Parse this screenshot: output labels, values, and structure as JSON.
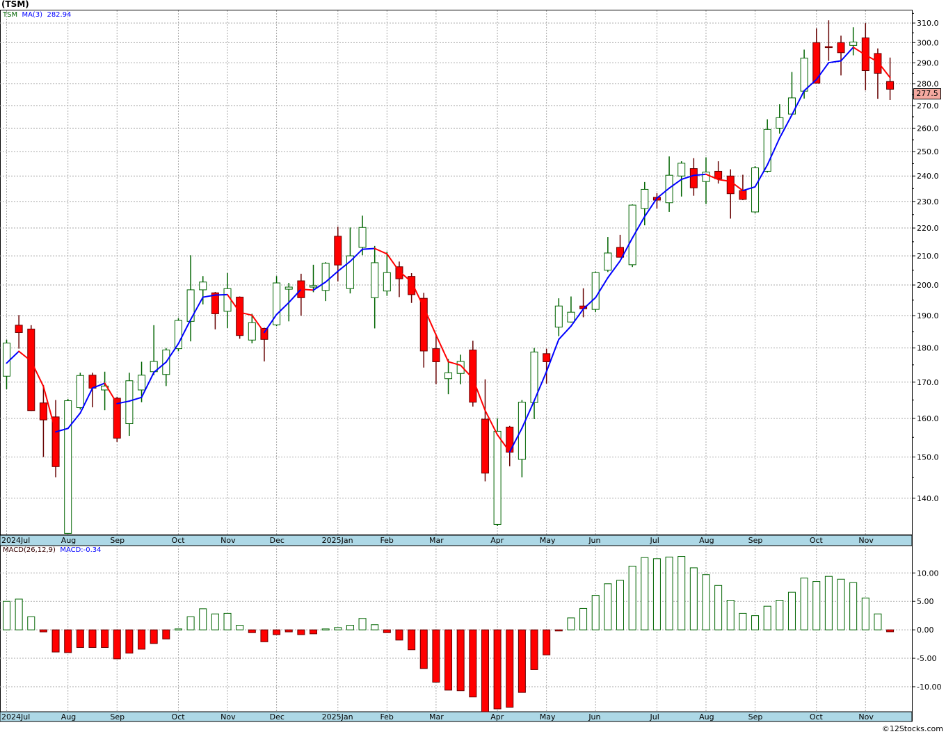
{
  "title": "(TSM)",
  "legend": {
    "symbol": "TSM",
    "ma_label": "MA(3)",
    "ma_value": "282.94"
  },
  "macd_legend": {
    "label": "MACD(26,12,9)",
    "value": "MACD:-0.34"
  },
  "last_price": "277.5",
  "footer": "©12Stocks.com",
  "colors": {
    "up": "#006400",
    "down_fill": "#ff0000",
    "down_edge": "#660000",
    "ma_up": "#0000ff",
    "ma_down": "#ff0000",
    "axis_band": "#add8e6",
    "grid": "#aaaaaa"
  },
  "chart_data": [
    {
      "type": "candlestick",
      "title": "(TSM)",
      "period": "weekly",
      "yscale": "log",
      "ylim": [
        131.6,
        316.6
      ],
      "ytick_labels": [
        "140.0",
        "150.0",
        "160.0",
        "170.0",
        "180.0",
        "190.0",
        "200.0",
        "210.0",
        "220.0",
        "230.0",
        "240.0",
        "250.0",
        "260.0",
        "270.0",
        "280.0",
        "290.0",
        "300.0",
        "310.0"
      ],
      "ytick_values": [
        140,
        150,
        160,
        170,
        180,
        190,
        200,
        210,
        220,
        230,
        240,
        250,
        260,
        270,
        280,
        290,
        300,
        310
      ],
      "months": [
        {
          "label": "2024Jul",
          "index": 0
        },
        {
          "label": "Aug",
          "index": 5
        },
        {
          "label": "Sep",
          "index": 9
        },
        {
          "label": "Oct",
          "index": 14
        },
        {
          "label": "Nov",
          "index": 18
        },
        {
          "label": "Dec",
          "index": 22
        },
        {
          "label": "2025Jan",
          "index": 27
        },
        {
          "label": "Feb",
          "index": 31
        },
        {
          "label": "Mar",
          "index": 35
        },
        {
          "label": "Apr",
          "index": 40
        },
        {
          "label": "May",
          "index": 44
        },
        {
          "label": "Jun",
          "index": 48
        },
        {
          "label": "Jul",
          "index": 53
        },
        {
          "label": "Aug",
          "index": 57
        },
        {
          "label": "Sep",
          "index": 61
        },
        {
          "label": "Oct",
          "index": 66
        },
        {
          "label": "Nov",
          "index": 70
        }
      ],
      "ohlc": [
        [
          171.7,
          182.5,
          168.0,
          181.5
        ],
        [
          187.0,
          190.2,
          179.8,
          184.7
        ],
        [
          185.8,
          187.0,
          162.0,
          162.1
        ],
        [
          164.2,
          169.2,
          150.0,
          159.6
        ],
        [
          160.4,
          165.0,
          145.0,
          147.6
        ],
        [
          132.0,
          165.3,
          132.0,
          164.8
        ],
        [
          162.9,
          172.7,
          162.4,
          171.9
        ],
        [
          172.0,
          172.7,
          163.0,
          168.3
        ],
        [
          167.8,
          173.0,
          162.2,
          168.9
        ],
        [
          165.5,
          165.9,
          153.8,
          154.8
        ],
        [
          158.6,
          172.7,
          155.4,
          170.4
        ],
        [
          167.8,
          175.9,
          164.4,
          172.0
        ],
        [
          173.0,
          187.0,
          172.0,
          176.0
        ],
        [
          172.2,
          180.0,
          168.9,
          179.4
        ],
        [
          179.8,
          189.2,
          179.0,
          188.5
        ],
        [
          188.2,
          210.2,
          182.0,
          198.4
        ],
        [
          198.4,
          203.0,
          193.6,
          201.0
        ],
        [
          197.4,
          197.7,
          185.7,
          190.6
        ],
        [
          191.4,
          204.0,
          186.1,
          198.8
        ],
        [
          196.0,
          196.2,
          182.8,
          183.8
        ],
        [
          182.4,
          190.6,
          181.4,
          187.8
        ],
        [
          186.0,
          186.2,
          176.0,
          182.6
        ],
        [
          187.1,
          203.0,
          186.7,
          200.7
        ],
        [
          198.6,
          200.7,
          188.2,
          199.3
        ],
        [
          201.4,
          203.8,
          190.0,
          195.8
        ],
        [
          199.3,
          206.9,
          197.6,
          199.8
        ],
        [
          198.2,
          207.8,
          194.7,
          207.4
        ],
        [
          217.0,
          220.5,
          201.2,
          206.8
        ],
        [
          198.8,
          220.2,
          197.2,
          210.0
        ],
        [
          213.0,
          224.6,
          210.2,
          220.2
        ],
        [
          195.8,
          213.5,
          186.0,
          207.6
        ],
        [
          198.0,
          211.5,
          196.4,
          204.2
        ],
        [
          206.2,
          208.0,
          196.0,
          202.1
        ],
        [
          202.9,
          204.0,
          194.1,
          196.8
        ],
        [
          195.6,
          197.4,
          174.2,
          179.1
        ],
        [
          179.8,
          184.0,
          169.4,
          175.9
        ],
        [
          171.0,
          176.7,
          166.6,
          172.7
        ],
        [
          172.5,
          178.0,
          169.4,
          176.0
        ],
        [
          179.4,
          182.2,
          163.2,
          164.4
        ],
        [
          159.8,
          170.8,
          144.0,
          146.0
        ],
        [
          134.0,
          160.0,
          133.6,
          156.6
        ],
        [
          157.7,
          158.0,
          147.7,
          151.2
        ],
        [
          149.4,
          165.0,
          145.0,
          164.4
        ],
        [
          164.3,
          180.0,
          159.8,
          178.8
        ],
        [
          178.3,
          179.8,
          169.6,
          175.9
        ],
        [
          186.4,
          195.6,
          183.6,
          193.1
        ],
        [
          188.0,
          196.2,
          187.8,
          191.1
        ],
        [
          193.1,
          198.9,
          189.5,
          192.2
        ],
        [
          192.0,
          204.6,
          191.1,
          204.2
        ],
        [
          205.0,
          216.7,
          204.4,
          211.0
        ],
        [
          213.0,
          217.5,
          209.5,
          209.5
        ],
        [
          206.9,
          228.9,
          206.1,
          228.6
        ],
        [
          227.3,
          237.6,
          221.0,
          234.7
        ],
        [
          231.6,
          233.2,
          227.3,
          230.5
        ],
        [
          229.5,
          248.0,
          226.0,
          240.3
        ],
        [
          240.0,
          246.0,
          231.9,
          245.2
        ],
        [
          243.0,
          247.3,
          232.2,
          235.3
        ],
        [
          237.8,
          247.6,
          229.0,
          241.6
        ],
        [
          241.9,
          246.0,
          237.0,
          238.9
        ],
        [
          240.0,
          242.7,
          223.5,
          233.0
        ],
        [
          234.2,
          240.5,
          230.5,
          230.8
        ],
        [
          226.0,
          244.0,
          225.5,
          243.3
        ],
        [
          241.9,
          263.9,
          241.4,
          259.4
        ],
        [
          260.0,
          270.6,
          257.6,
          264.6
        ],
        [
          266.2,
          285.6,
          266.2,
          273.5
        ],
        [
          276.6,
          296.5,
          273.2,
          292.3
        ],
        [
          300.0,
          307.2,
          280.3,
          280.3
        ],
        [
          298.0,
          311.4,
          291.0,
          297.7
        ],
        [
          300.0,
          303.5,
          284.0,
          295.0
        ],
        [
          298.6,
          307.8,
          293.7,
          300.3
        ],
        [
          302.4,
          310.0,
          277.0,
          286.3
        ],
        [
          294.6,
          297.1,
          273.1,
          285.0
        ],
        [
          281.1,
          292.6,
          272.5,
          277.5
        ]
      ],
      "ma3_initial": [
        175.5,
        179.0
      ]
    },
    {
      "type": "bar",
      "title": "MACD(26,12,9)",
      "ylim": [
        -14.4,
        14.8
      ],
      "ytick_labels": [
        "10.00",
        "5.00",
        "0.00",
        "-5.00",
        "-10.00"
      ],
      "ytick_values": [
        10,
        5,
        0,
        -5,
        -10
      ],
      "values": [
        5.0,
        5.4,
        2.3,
        -0.36,
        -3.9,
        -4.0,
        -3.1,
        -3.1,
        -3.1,
        -5.1,
        -4.1,
        -3.4,
        -2.4,
        -1.6,
        0.16,
        2.3,
        3.7,
        2.8,
        2.9,
        0.8,
        -0.5,
        -2.1,
        -0.85,
        -0.36,
        -0.85,
        -0.7,
        0.16,
        0.4,
        0.8,
        2.0,
        0.9,
        -0.5,
        -1.8,
        -3.5,
        -6.8,
        -9.2,
        -10.6,
        -10.7,
        -11.8,
        -14.5,
        -13.9,
        -13.6,
        -11.0,
        -7.0,
        -4.4,
        -0.2,
        2.1,
        3.75,
        6.05,
        8.1,
        8.7,
        11.2,
        12.7,
        12.5,
        12.8,
        12.9,
        10.9,
        9.7,
        7.8,
        5.2,
        2.9,
        2.5,
        4.15,
        5.2,
        6.6,
        9.1,
        8.5,
        9.4,
        8.9,
        8.3,
        5.6,
        2.8,
        -0.34
      ]
    }
  ]
}
